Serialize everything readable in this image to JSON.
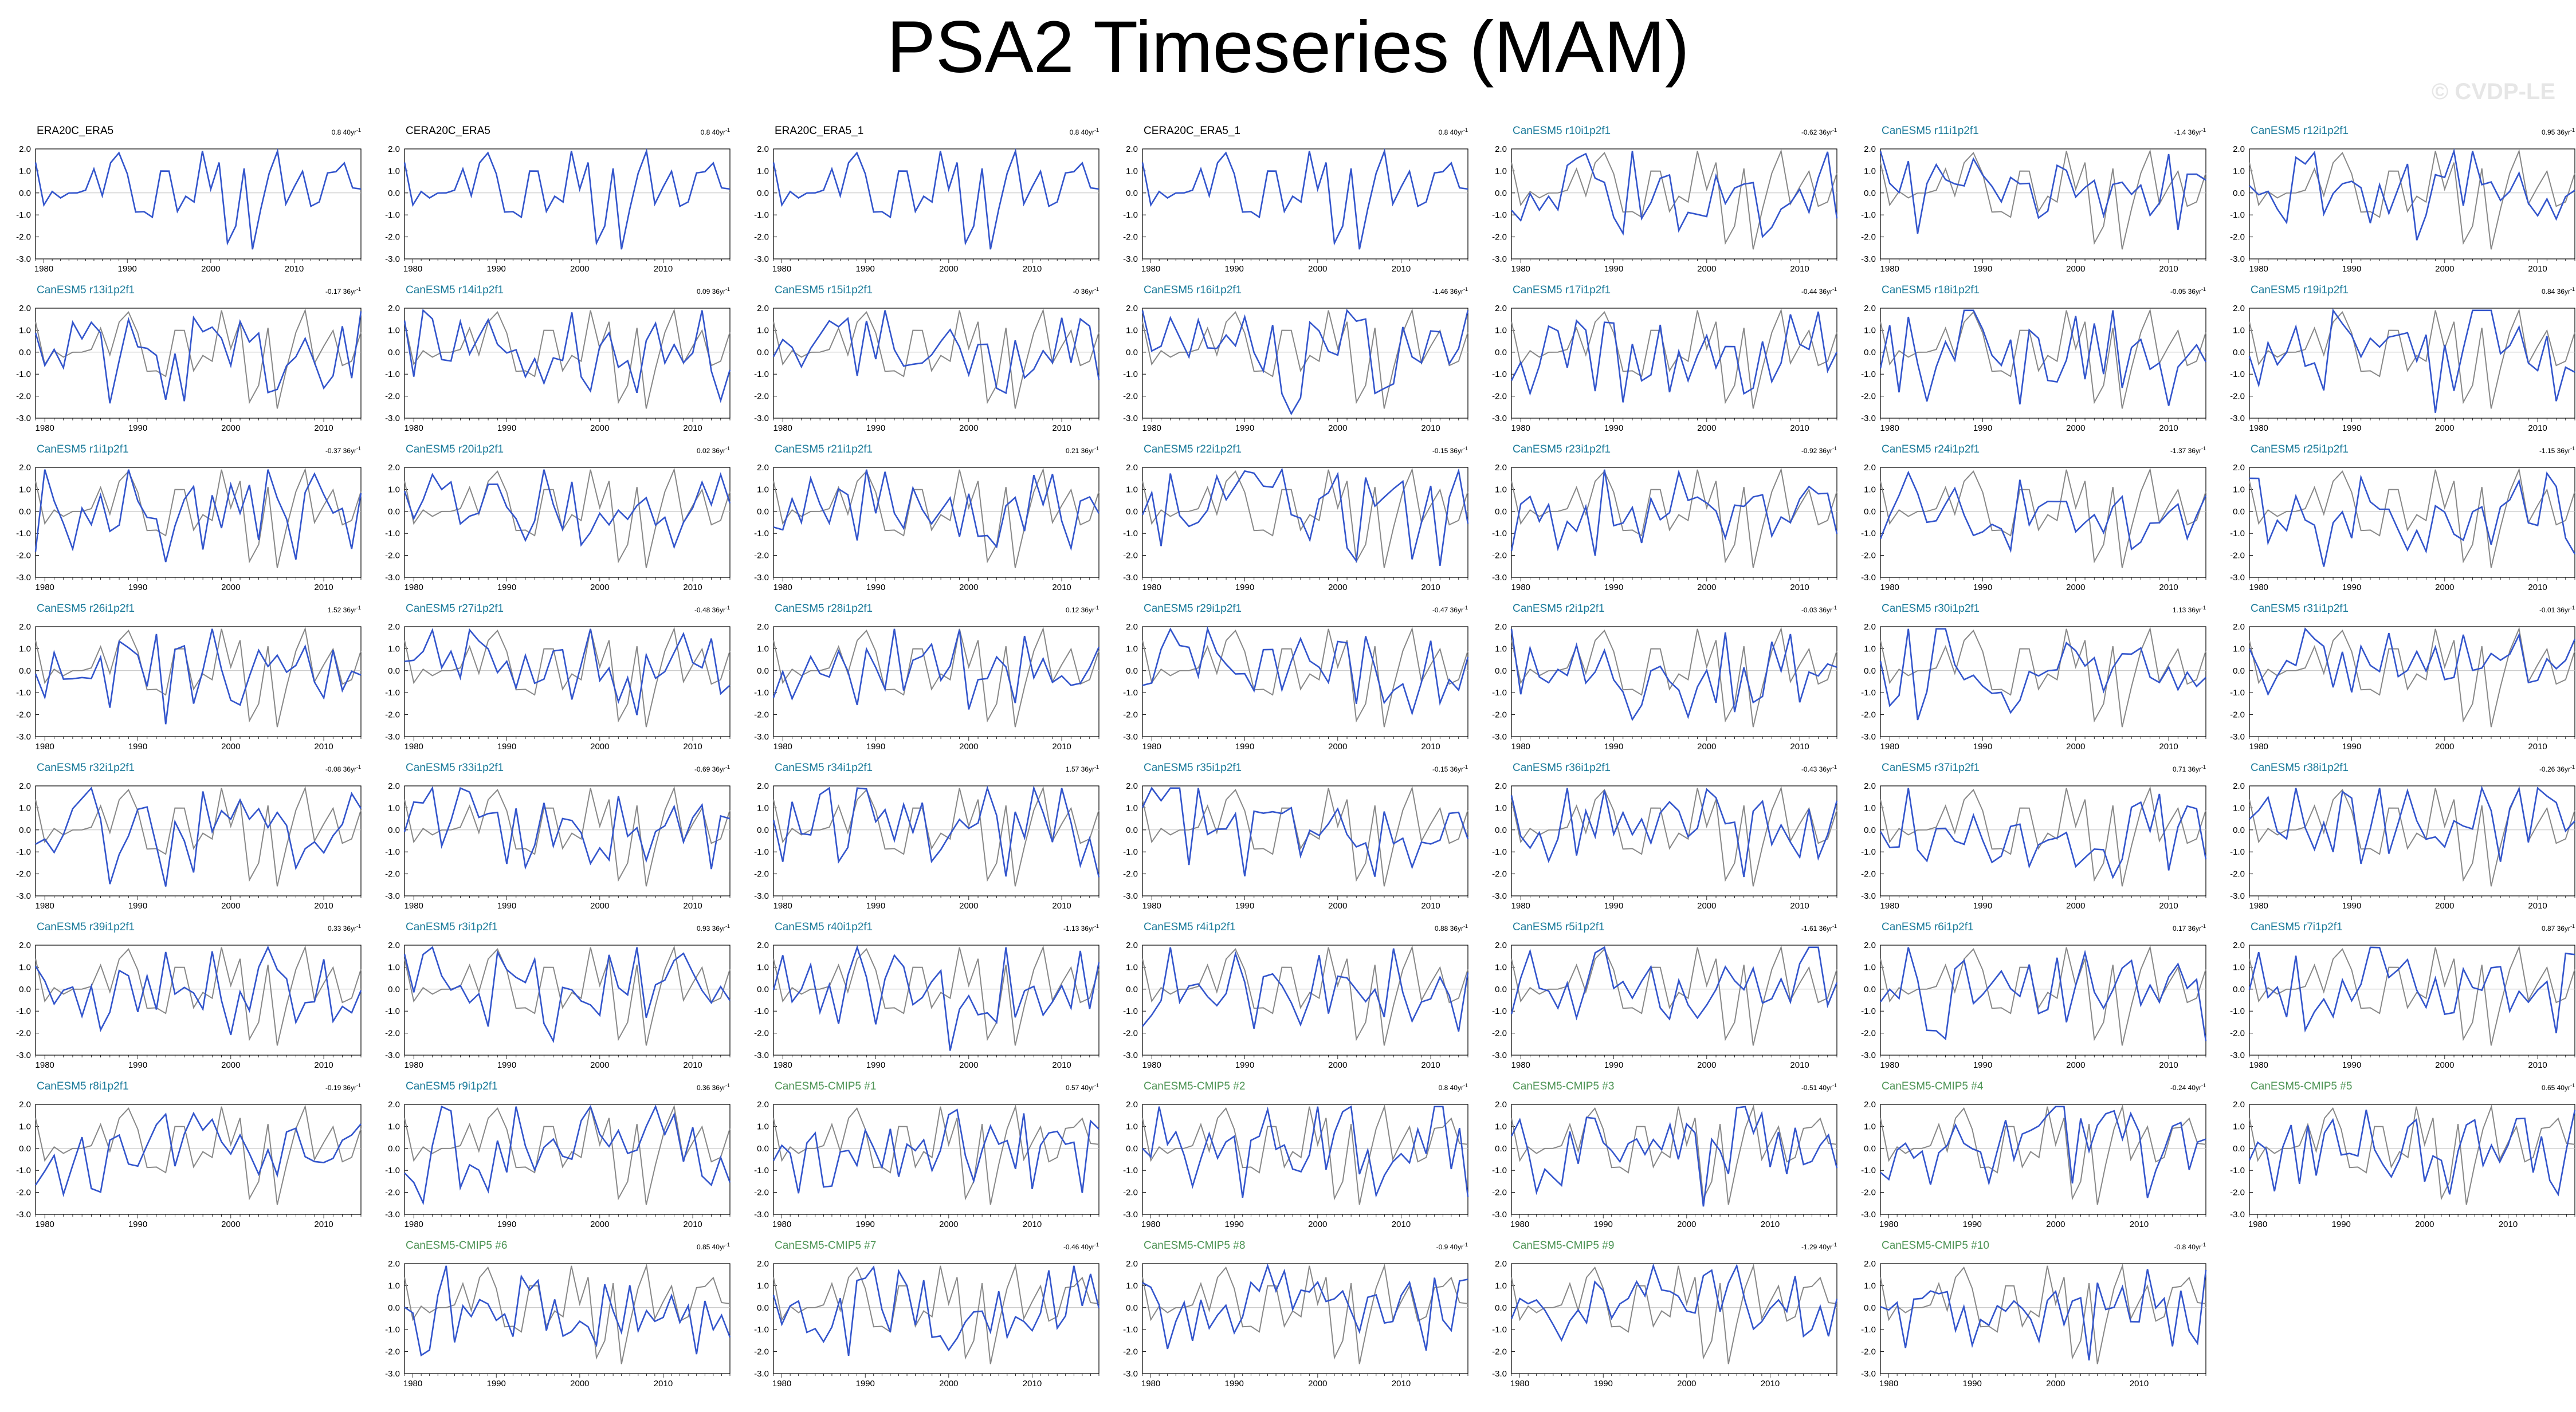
{
  "title": "PSA2 Timeseries (MAM)",
  "watermark": "© CVDP-LE",
  "colors": {
    "observed_label": "#000000",
    "member_label": "#1a7a9a",
    "cmip_label": "#4e9455",
    "series_line": "#3355cc",
    "reference_line": "#888888",
    "zero_line": "#bbbbbb"
  },
  "chart_data": {
    "type": "line",
    "layout": "small-multiples",
    "x_ticks": [
      "1980",
      "1990",
      "2000",
      "2010"
    ],
    "y_ticks": [
      "2.0",
      "1.0",
      "0.0",
      "-1.0",
      "-2.0",
      "-3.0"
    ],
    "xlim_observed": [
      1979,
      2018
    ],
    "xlim_model": [
      1979,
      2014
    ],
    "ylim": [
      -3.0,
      2.0
    ],
    "panels": [
      {
        "label": "ERA20C_ERA5",
        "trend": "0.8",
        "trend_unit": "40yr",
        "kind": "obs"
      },
      {
        "label": "CERA20C_ERA5",
        "trend": "0.8",
        "trend_unit": "40yr",
        "kind": "obs"
      },
      {
        "label": "ERA20C_ERA5_1",
        "trend": "0.8",
        "trend_unit": "40yr",
        "kind": "obs"
      },
      {
        "label": "CERA20C_ERA5_1",
        "trend": "0.8",
        "trend_unit": "40yr",
        "kind": "obs"
      },
      {
        "label": "CanESM5 r10i1p2f1",
        "trend": "-0.62",
        "trend_unit": "36yr",
        "kind": "member"
      },
      {
        "label": "CanESM5 r11i1p2f1",
        "trend": "-1.4",
        "trend_unit": "36yr",
        "kind": "member"
      },
      {
        "label": "CanESM5 r12i1p2f1",
        "trend": "0.95",
        "trend_unit": "36yr",
        "kind": "member"
      },
      {
        "label": "CanESM5 r13i1p2f1",
        "trend": "-0.17",
        "trend_unit": "36yr",
        "kind": "member"
      },
      {
        "label": "CanESM5 r14i1p2f1",
        "trend": "0.09",
        "trend_unit": "36yr",
        "kind": "member"
      },
      {
        "label": "CanESM5 r15i1p2f1",
        "trend": "-0",
        "trend_unit": "36yr",
        "kind": "member"
      },
      {
        "label": "CanESM5 r16i1p2f1",
        "trend": "-1.46",
        "trend_unit": "36yr",
        "kind": "member"
      },
      {
        "label": "CanESM5 r17i1p2f1",
        "trend": "-0.44",
        "trend_unit": "36yr",
        "kind": "member"
      },
      {
        "label": "CanESM5 r18i1p2f1",
        "trend": "-0.05",
        "trend_unit": "36yr",
        "kind": "member"
      },
      {
        "label": "CanESM5 r19i1p2f1",
        "trend": "0.84",
        "trend_unit": "36yr",
        "kind": "member"
      },
      {
        "label": "CanESM5 r1i1p2f1",
        "trend": "-0.37",
        "trend_unit": "36yr",
        "kind": "member"
      },
      {
        "label": "CanESM5 r20i1p2f1",
        "trend": "0.02",
        "trend_unit": "36yr",
        "kind": "member"
      },
      {
        "label": "CanESM5 r21i1p2f1",
        "trend": "0.21",
        "trend_unit": "36yr",
        "kind": "member"
      },
      {
        "label": "CanESM5 r22i1p2f1",
        "trend": "-0.15",
        "trend_unit": "36yr",
        "kind": "member"
      },
      {
        "label": "CanESM5 r23i1p2f1",
        "trend": "-0.92",
        "trend_unit": "36yr",
        "kind": "member"
      },
      {
        "label": "CanESM5 r24i1p2f1",
        "trend": "-1.37",
        "trend_unit": "36yr",
        "kind": "member"
      },
      {
        "label": "CanESM5 r25i1p2f1",
        "trend": "-1.15",
        "trend_unit": "36yr",
        "kind": "member"
      },
      {
        "label": "CanESM5 r26i1p2f1",
        "trend": "1.52",
        "trend_unit": "36yr",
        "kind": "member"
      },
      {
        "label": "CanESM5 r27i1p2f1",
        "trend": "-0.48",
        "trend_unit": "36yr",
        "kind": "member"
      },
      {
        "label": "CanESM5 r28i1p2f1",
        "trend": "0.12",
        "trend_unit": "36yr",
        "kind": "member"
      },
      {
        "label": "CanESM5 r29i1p2f1",
        "trend": "-0.47",
        "trend_unit": "36yr",
        "kind": "member"
      },
      {
        "label": "CanESM5 r2i1p2f1",
        "trend": "-0.03",
        "trend_unit": "36yr",
        "kind": "member"
      },
      {
        "label": "CanESM5 r30i1p2f1",
        "trend": "1.13",
        "trend_unit": "36yr",
        "kind": "member"
      },
      {
        "label": "CanESM5 r31i1p2f1",
        "trend": "-0.01",
        "trend_unit": "36yr",
        "kind": "member"
      },
      {
        "label": "CanESM5 r32i1p2f1",
        "trend": "-0.08",
        "trend_unit": "36yr",
        "kind": "member"
      },
      {
        "label": "CanESM5 r33i1p2f1",
        "trend": "-0.69",
        "trend_unit": "36yr",
        "kind": "member"
      },
      {
        "label": "CanESM5 r34i1p2f1",
        "trend": "1.57",
        "trend_unit": "36yr",
        "kind": "member"
      },
      {
        "label": "CanESM5 r35i1p2f1",
        "trend": "-0.15",
        "trend_unit": "36yr",
        "kind": "member"
      },
      {
        "label": "CanESM5 r36i1p2f1",
        "trend": "-0.43",
        "trend_unit": "36yr",
        "kind": "member"
      },
      {
        "label": "CanESM5 r37i1p2f1",
        "trend": "0.71",
        "trend_unit": "36yr",
        "kind": "member"
      },
      {
        "label": "CanESM5 r38i1p2f1",
        "trend": "-0.26",
        "trend_unit": "36yr",
        "kind": "member"
      },
      {
        "label": "CanESM5 r39i1p2f1",
        "trend": "0.33",
        "trend_unit": "36yr",
        "kind": "member"
      },
      {
        "label": "CanESM5 r3i1p2f1",
        "trend": "0.93",
        "trend_unit": "36yr",
        "kind": "member"
      },
      {
        "label": "CanESM5 r40i1p2f1",
        "trend": "-1.13",
        "trend_unit": "36yr",
        "kind": "member"
      },
      {
        "label": "CanESM5 r4i1p2f1",
        "trend": "0.88",
        "trend_unit": "36yr",
        "kind": "member"
      },
      {
        "label": "CanESM5 r5i1p2f1",
        "trend": "-1.61",
        "trend_unit": "36yr",
        "kind": "member"
      },
      {
        "label": "CanESM5 r6i1p2f1",
        "trend": "0.17",
        "trend_unit": "36yr",
        "kind": "member"
      },
      {
        "label": "CanESM5 r7i1p2f1",
        "trend": "0.87",
        "trend_unit": "36yr",
        "kind": "member"
      },
      {
        "label": "CanESM5 r8i1p2f1",
        "trend": "-0.19",
        "trend_unit": "36yr",
        "kind": "member"
      },
      {
        "label": "CanESM5 r9i1p2f1",
        "trend": "0.36",
        "trend_unit": "36yr",
        "kind": "member"
      },
      {
        "label": "CanESM5-CMIP5 #1",
        "trend": "0.57",
        "trend_unit": "40yr",
        "kind": "cmip"
      },
      {
        "label": "CanESM5-CMIP5 #2",
        "trend": "0.8",
        "trend_unit": "40yr",
        "kind": "cmip"
      },
      {
        "label": "CanESM5-CMIP5 #3",
        "trend": "-0.51",
        "trend_unit": "40yr",
        "kind": "cmip"
      },
      {
        "label": "CanESM5-CMIP5 #4",
        "trend": "-0.24",
        "trend_unit": "40yr",
        "kind": "cmip"
      },
      {
        "label": "CanESM5-CMIP5 #5",
        "trend": "0.65",
        "trend_unit": "40yr",
        "kind": "cmip"
      },
      {
        "label": "CanESM5-CMIP5 #6",
        "trend": "0.85",
        "trend_unit": "40yr",
        "kind": "cmip"
      },
      {
        "label": "CanESM5-CMIP5 #7",
        "trend": "-0.46",
        "trend_unit": "40yr",
        "kind": "cmip"
      },
      {
        "label": "CanESM5-CMIP5 #8",
        "trend": "-0.9",
        "trend_unit": "40yr",
        "kind": "cmip"
      },
      {
        "label": "CanESM5-CMIP5 #9",
        "trend": "-1.29",
        "trend_unit": "40yr",
        "kind": "cmip"
      },
      {
        "label": "CanESM5-CMIP5 #10",
        "trend": "-0.8",
        "trend_unit": "40yr",
        "kind": "cmip"
      }
    ]
  }
}
